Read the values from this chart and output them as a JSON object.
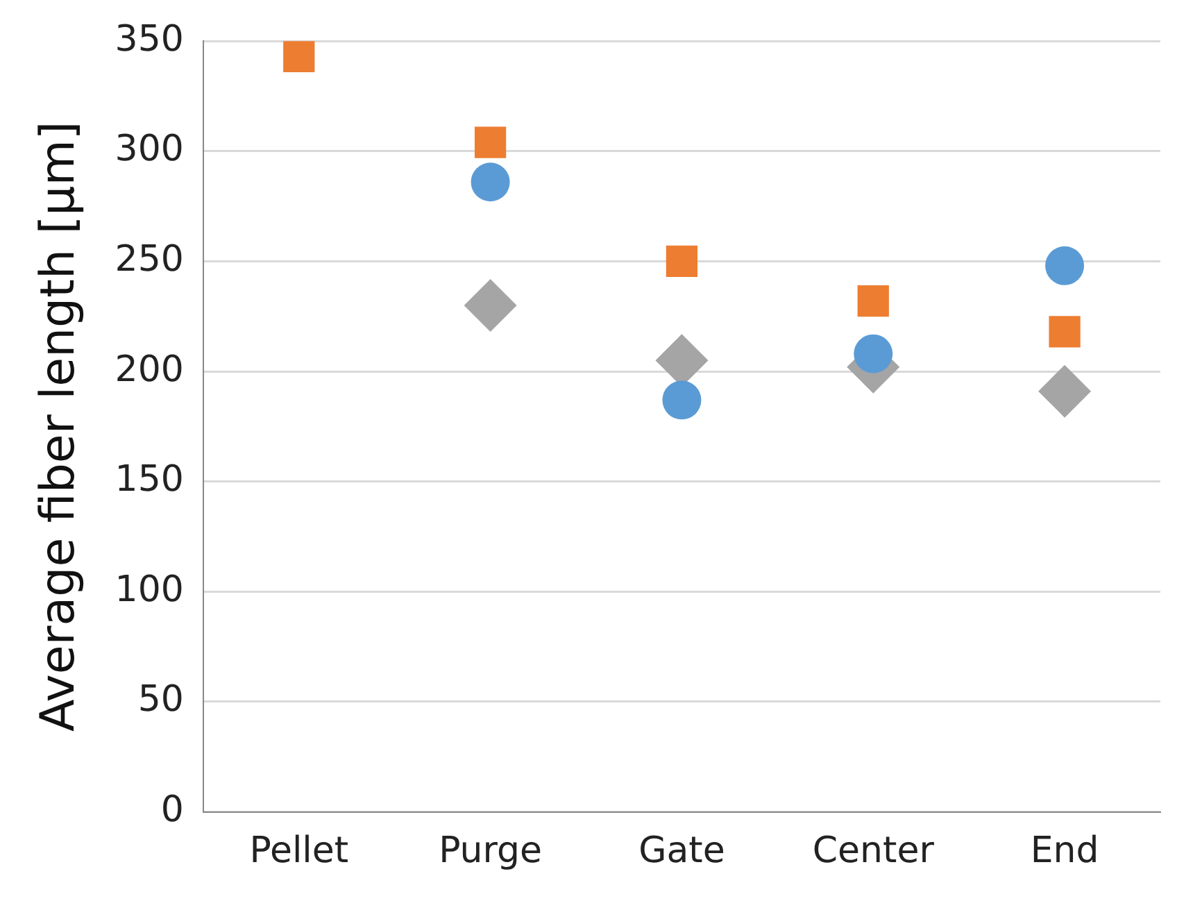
{
  "chart_data": {
    "type": "scatter",
    "ylabel": "Average fiber length [µm]",
    "categories": [
      "Pellet",
      "Purge",
      "Gate",
      "Center",
      "End"
    ],
    "series": [
      {
        "color": "#5b9bd5",
        "marker": "circle",
        "values": [
          null,
          286,
          187,
          208,
          248
        ]
      },
      {
        "color": "#ed7d31",
        "marker": "square",
        "values": [
          343,
          304,
          250,
          232,
          218
        ]
      },
      {
        "color": "#a5a5a5",
        "marker": "diamond",
        "values": [
          null,
          230,
          205,
          202,
          191
        ]
      }
    ],
    "ylim": [
      0,
      350
    ],
    "yticks": [
      0,
      50,
      100,
      150,
      200,
      250,
      300,
      350
    ],
    "grid": "y",
    "legend": false
  }
}
